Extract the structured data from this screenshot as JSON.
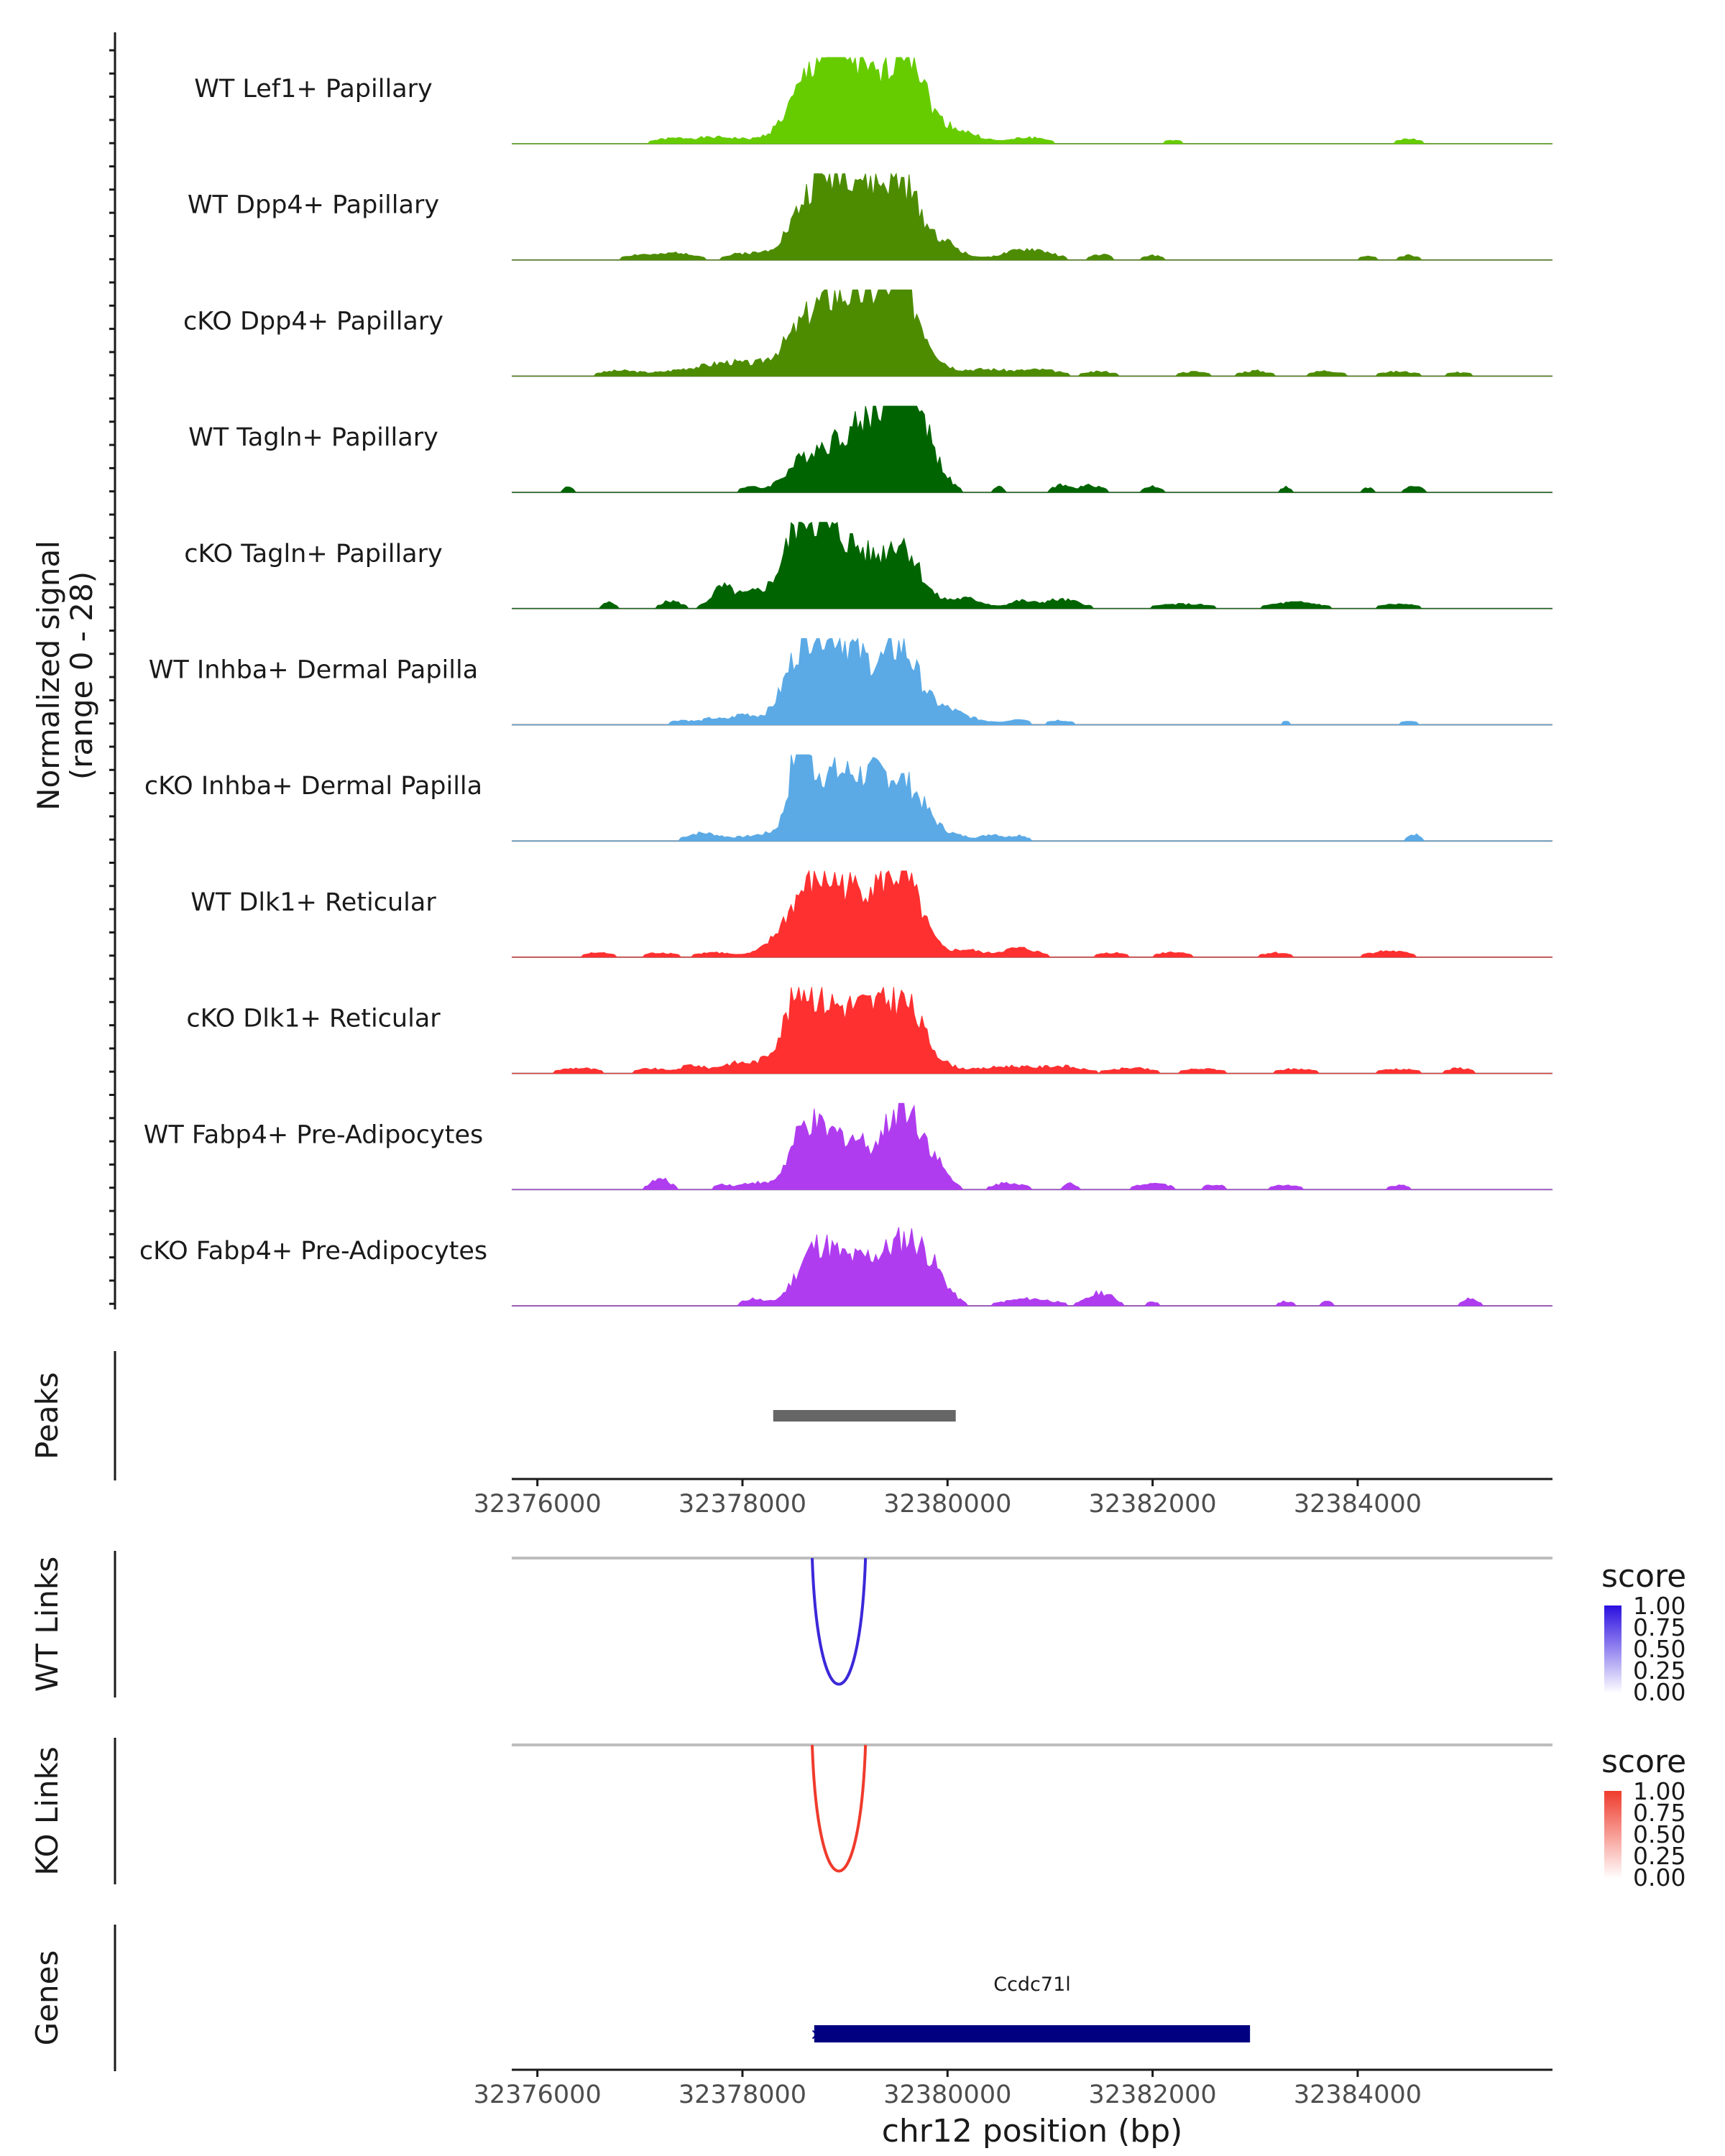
{
  "chart_data": {
    "type": "area",
    "title": "",
    "chromosome": "chr12",
    "xlabel": "chr12 position (bp)",
    "xlim": [
      32375750,
      32385900
    ],
    "xticks": [
      32376000,
      32378000,
      32380000,
      32382000,
      32384000
    ],
    "xtick_labels": [
      "32376000",
      "32378000",
      "32380000",
      "32382000",
      "32384000"
    ],
    "ylabel_line1": "Normalized signal",
    "ylabel_line2": "(range 0 - 28)",
    "ylim": [
      0,
      28
    ],
    "series": [
      {
        "name": "WT Lef1+ Papillary",
        "color": "#66cc00",
        "peaks": [
          [
            32378650,
            0.55,
            220
          ],
          [
            32378880,
            0.48,
            200
          ],
          [
            32379050,
            0.38,
            200
          ],
          [
            32379300,
            0.42,
            200
          ],
          [
            32379600,
            0.88,
            140
          ],
          [
            32379800,
            0.25,
            250
          ]
        ],
        "noise": [
          [
            32377300,
            0.05,
            200
          ],
          [
            32377800,
            0.07,
            250
          ],
          [
            32380200,
            0.06,
            180
          ],
          [
            32380800,
            0.07,
            180
          ],
          [
            32382200,
            0.04,
            120
          ],
          [
            32384500,
            0.05,
            140
          ]
        ]
      },
      {
        "name": "WT Dpp4+ Papillary",
        "color": "#4d8c00",
        "peaks": [
          [
            32378650,
            0.42,
            200
          ],
          [
            32378900,
            0.5,
            200
          ],
          [
            32379200,
            0.42,
            220
          ],
          [
            32379580,
            0.58,
            180
          ],
          [
            32379200,
            0.25,
            500
          ]
        ],
        "noise": [
          [
            32377000,
            0.06,
            160
          ],
          [
            32377400,
            0.08,
            150
          ],
          [
            32378000,
            0.06,
            150
          ],
          [
            32380000,
            0.1,
            120
          ],
          [
            32380800,
            0.12,
            220
          ],
          [
            32381500,
            0.06,
            100
          ],
          [
            32382000,
            0.05,
            100
          ],
          [
            32384100,
            0.04,
            100
          ],
          [
            32384500,
            0.05,
            100
          ]
        ]
      },
      {
        "name": "cKO Dpp4+ Papillary",
        "color": "#4d8c00",
        "peaks": [
          [
            32378700,
            0.5,
            280
          ],
          [
            32379000,
            0.32,
            240
          ],
          [
            32379350,
            0.45,
            220
          ],
          [
            32379600,
            0.55,
            180
          ],
          [
            32379200,
            0.25,
            500
          ]
        ],
        "noise": [
          [
            32376800,
            0.06,
            200
          ],
          [
            32377500,
            0.08,
            250
          ],
          [
            32377900,
            0.12,
            200
          ],
          [
            32380400,
            0.06,
            200
          ],
          [
            32380900,
            0.07,
            200
          ],
          [
            32381500,
            0.05,
            150
          ],
          [
            32382400,
            0.05,
            150
          ],
          [
            32383000,
            0.06,
            150
          ],
          [
            32383700,
            0.06,
            150
          ],
          [
            32384400,
            0.05,
            200
          ],
          [
            32385000,
            0.04,
            150
          ]
        ]
      },
      {
        "name": "WT Tagln+ Papillary",
        "color": "#006400",
        "peaks": [
          [
            32378600,
            0.25,
            200
          ],
          [
            32378900,
            0.3,
            250
          ],
          [
            32379200,
            0.45,
            250
          ],
          [
            32379450,
            0.6,
            200
          ],
          [
            32379600,
            0.85,
            120
          ],
          [
            32379800,
            0.4,
            150
          ]
        ],
        "noise": [
          [
            32376300,
            0.06,
            60
          ],
          [
            32378050,
            0.06,
            80
          ],
          [
            32380500,
            0.06,
            60
          ],
          [
            32381100,
            0.08,
            80
          ],
          [
            32381400,
            0.08,
            120
          ],
          [
            32382000,
            0.07,
            80
          ],
          [
            32383300,
            0.06,
            60
          ],
          [
            32384100,
            0.05,
            60
          ],
          [
            32384550,
            0.07,
            80
          ]
        ]
      },
      {
        "name": "cKO Tagln+ Papillary",
        "color": "#006400",
        "peaks": [
          [
            32378550,
            0.7,
            150
          ],
          [
            32378800,
            0.45,
            160
          ],
          [
            32379100,
            0.4,
            180
          ],
          [
            32379550,
            0.6,
            160
          ],
          [
            32379000,
            0.25,
            600
          ]
        ],
        "noise": [
          [
            32376700,
            0.07,
            60
          ],
          [
            32377300,
            0.08,
            100
          ],
          [
            32377800,
            0.2,
            100
          ],
          [
            32378100,
            0.1,
            150
          ],
          [
            32380200,
            0.08,
            150
          ],
          [
            32380700,
            0.07,
            100
          ],
          [
            32381100,
            0.1,
            200
          ],
          [
            32382300,
            0.05,
            300
          ],
          [
            32383400,
            0.07,
            250
          ],
          [
            32384400,
            0.05,
            200
          ]
        ]
      },
      {
        "name": "WT Inhba+ Dermal Papilla",
        "color": "#5baae6",
        "peaks": [
          [
            32378550,
            0.55,
            150
          ],
          [
            32378800,
            0.65,
            160
          ],
          [
            32379100,
            0.45,
            180
          ],
          [
            32379550,
            0.62,
            160
          ],
          [
            32379200,
            0.3,
            600
          ]
        ],
        "noise": [
          [
            32377400,
            0.05,
            100
          ],
          [
            32377700,
            0.06,
            100
          ],
          [
            32378000,
            0.08,
            100
          ],
          [
            32380000,
            0.06,
            150
          ],
          [
            32380700,
            0.06,
            80
          ],
          [
            32381100,
            0.05,
            120
          ],
          [
            32383300,
            0.04,
            60
          ],
          [
            32384500,
            0.04,
            100
          ]
        ]
      },
      {
        "name": "cKO Inhba+ Dermal Papilla",
        "color": "#5baae6",
        "peaks": [
          [
            32378550,
            0.92,
            90
          ],
          [
            32378750,
            0.4,
            120
          ],
          [
            32379000,
            0.45,
            150
          ],
          [
            32379300,
            0.38,
            150
          ],
          [
            32379600,
            0.45,
            180
          ],
          [
            32379100,
            0.25,
            600
          ]
        ],
        "noise": [
          [
            32377600,
            0.08,
            150
          ],
          [
            32380450,
            0.06,
            80
          ],
          [
            32380700,
            0.06,
            80
          ],
          [
            32384550,
            0.08,
            60
          ]
        ]
      },
      {
        "name": "WT Dlk1+ Reticular",
        "color": "#ff3030",
        "peaks": [
          [
            32378600,
            0.5,
            200
          ],
          [
            32378900,
            0.42,
            200
          ],
          [
            32379300,
            0.45,
            200
          ],
          [
            32379600,
            0.6,
            160
          ],
          [
            32379100,
            0.25,
            500
          ]
        ],
        "noise": [
          [
            32376600,
            0.05,
            150
          ],
          [
            32377200,
            0.05,
            150
          ],
          [
            32377700,
            0.05,
            150
          ],
          [
            32380200,
            0.06,
            120
          ],
          [
            32380700,
            0.1,
            180
          ],
          [
            32381600,
            0.05,
            150
          ],
          [
            32382200,
            0.06,
            150
          ],
          [
            32383200,
            0.05,
            150
          ],
          [
            32384300,
            0.07,
            200
          ]
        ]
      },
      {
        "name": "cKO Dlk1+ Reticular",
        "color": "#ff3030",
        "peaks": [
          [
            32378550,
            0.6,
            150
          ],
          [
            32378850,
            0.4,
            200
          ],
          [
            32379250,
            0.4,
            200
          ],
          [
            32379600,
            0.55,
            180
          ],
          [
            32379000,
            0.3,
            600
          ]
        ],
        "noise": [
          [
            32376400,
            0.06,
            200
          ],
          [
            32377100,
            0.05,
            150
          ],
          [
            32377500,
            0.08,
            100
          ],
          [
            32377900,
            0.06,
            150
          ],
          [
            32380600,
            0.07,
            200
          ],
          [
            32381100,
            0.08,
            200
          ],
          [
            32381800,
            0.06,
            200
          ],
          [
            32382500,
            0.05,
            200
          ],
          [
            32383400,
            0.05,
            200
          ],
          [
            32384400,
            0.05,
            200
          ],
          [
            32385000,
            0.06,
            120
          ]
        ]
      },
      {
        "name": "WT Fabp4+ Pre-Adipocytes",
        "color": "#b03cf0",
        "peaks": [
          [
            32378600,
            0.55,
            150
          ],
          [
            32378900,
            0.4,
            220
          ],
          [
            32379200,
            0.35,
            250
          ],
          [
            32379550,
            0.75,
            140
          ],
          [
            32379800,
            0.4,
            150
          ]
        ],
        "noise": [
          [
            32377200,
            0.12,
            100
          ],
          [
            32377800,
            0.06,
            80
          ],
          [
            32378100,
            0.08,
            120
          ],
          [
            32380600,
            0.08,
            150
          ],
          [
            32381200,
            0.07,
            60
          ],
          [
            32382000,
            0.08,
            150
          ],
          [
            32382600,
            0.06,
            100
          ],
          [
            32383300,
            0.05,
            150
          ],
          [
            32384400,
            0.05,
            100
          ]
        ]
      },
      {
        "name": "cKO Fabp4+ Pre-Adipocytes",
        "color": "#b03cf0",
        "peaks": [
          [
            32378700,
            0.55,
            180
          ],
          [
            32379000,
            0.35,
            220
          ],
          [
            32379300,
            0.35,
            180
          ],
          [
            32379600,
            0.6,
            160
          ],
          [
            32379850,
            0.35,
            150
          ]
        ],
        "noise": [
          [
            32378100,
            0.08,
            100
          ],
          [
            32380800,
            0.08,
            250
          ],
          [
            32381500,
            0.15,
            120
          ],
          [
            32382000,
            0.05,
            60
          ],
          [
            32383300,
            0.05,
            80
          ],
          [
            32383700,
            0.05,
            60
          ],
          [
            32385100,
            0.08,
            80
          ]
        ]
      }
    ],
    "peaks_track": {
      "label": "Peaks",
      "color": "#666666",
      "regions": [
        [
          32378300,
          32380080
        ]
      ]
    },
    "links_tracks": [
      {
        "label": "WT Links",
        "color": "#3b28d9",
        "legend_color": "#2b0fe0",
        "legend_title": "score",
        "anchors": [
          32378680,
          32379200
        ],
        "score": 1.0,
        "depth": 0.9
      },
      {
        "label": "KO Links",
        "color": "#ef3b2c",
        "legend_color": "#ef3b2c",
        "legend_title": "score",
        "anchors": [
          32378680,
          32379200
        ],
        "score": 1.0,
        "depth": 0.9
      }
    ],
    "legend_ticks": [
      "1.00",
      "0.75",
      "0.50",
      "0.25",
      "0.00"
    ],
    "genes_track": {
      "label": "Genes",
      "color": "#000080",
      "genes": [
        {
          "name": "Ccdc71l",
          "start": 32378700,
          "end": 32382950,
          "strand": "-"
        }
      ]
    }
  }
}
